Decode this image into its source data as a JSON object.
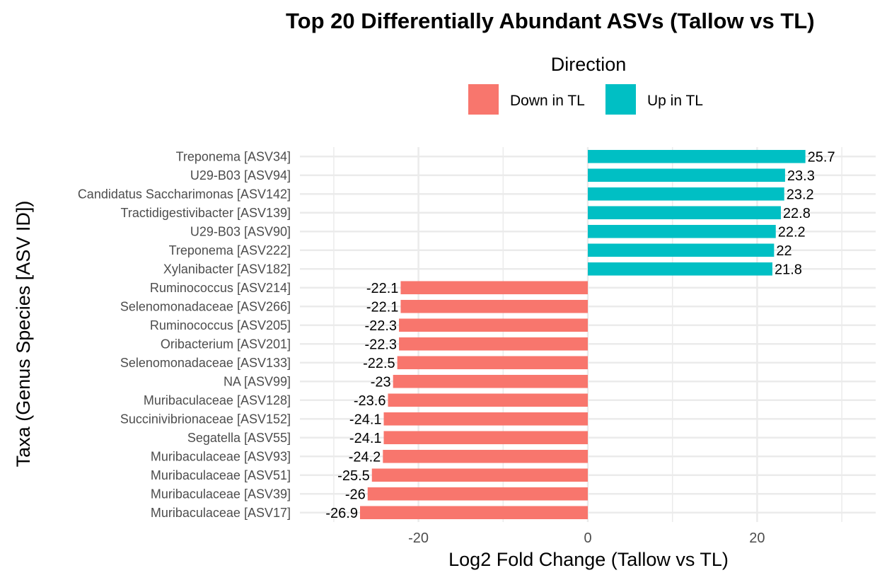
{
  "chart_data": {
    "type": "bar",
    "orientation": "horizontal",
    "title": "Top 20 Differentially Abundant ASVs (Tallow vs TL)",
    "xlabel": "Log2 Fold Change (Tallow vs TL)",
    "ylabel": "Taxa (Genus Species [ASV ID])",
    "xlim": [
      -34,
      34
    ],
    "xticks": [
      -20,
      0,
      20
    ],
    "grid": true,
    "legend": {
      "title": "Direction",
      "placement": "top",
      "entries": [
        {
          "label": "Down in TL",
          "color": "#F8766D"
        },
        {
          "label": "Up in TL",
          "color": "#00BFC4"
        }
      ]
    },
    "categories": [
      "Treponema  [ASV34]",
      "U29-B03  [ASV94]",
      "Candidatus Saccharimonas  [ASV142]",
      "Tractidigestivibacter  [ASV139]",
      "U29-B03  [ASV90]",
      "Treponema  [ASV222]",
      "Xylanibacter  [ASV182]",
      "Ruminococcus  [ASV214]",
      "Selenomonadaceae  [ASV266]",
      "Ruminococcus  [ASV205]",
      "Oribacterium  [ASV201]",
      "Selenomonadaceae  [ASV133]",
      "NA  [ASV99]",
      "Muribaculaceae  [ASV128]",
      "Succinivibrionaceae  [ASV152]",
      "Segatella  [ASV55]",
      "Muribaculaceae  [ASV93]",
      "Muribaculaceae  [ASV51]",
      "Muribaculaceae  [ASV39]",
      "Muribaculaceae  [ASV17]"
    ],
    "values": [
      25.7,
      23.3,
      23.2,
      22.8,
      22.2,
      22,
      21.8,
      -22.1,
      -22.1,
      -22.3,
      -22.3,
      -22.5,
      -23,
      -23.6,
      -24.1,
      -24.1,
      -24.2,
      -25.5,
      -26,
      -26.9
    ],
    "value_labels": [
      "25.7",
      "23.3",
      "23.2",
      "22.8",
      "22.2",
      "22",
      "21.8",
      "-22.1",
      "-22.1",
      "-22.3",
      "-22.3",
      "-22.5",
      "-23",
      "-23.6",
      "-24.1",
      "-24.1",
      "-24.2",
      "-25.5",
      "-26",
      "-26.9"
    ],
    "colors": {
      "down": "#F8766D",
      "up": "#00BFC4",
      "grid": "#EBEBEB"
    }
  }
}
